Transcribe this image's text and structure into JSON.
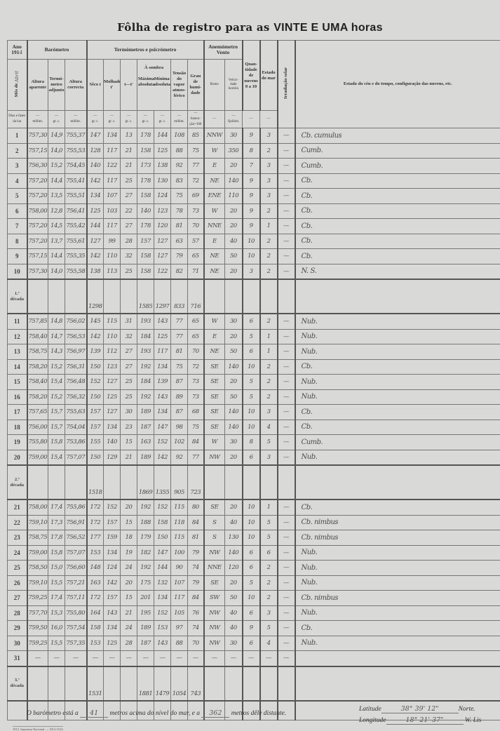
{
  "title": {
    "prefix": "Fôlha de registro para as",
    "hour": "VINTE E UMA horas"
  },
  "header": {
    "year_label": "Ano",
    "year_printed": "191",
    "year_hand": "4",
    "month_label": "Mês de",
    "month_hand": "Abril",
    "days_label": "Dias e fases da lua",
    "barometro": "Barómetro",
    "altura_aparente": "Altura aparente",
    "termometro_adjunto": "Termó-metro adjunto",
    "altura_correcta": "Altura correcta",
    "termometros": "Termómetros e psicrómetro",
    "seco": "Sêco t",
    "molhado": "Molhado t'",
    "diff": "t—t'",
    "sombra": "À sombra",
    "maxima": "Máxima absoluta",
    "minima": "Mínima absoluta",
    "tensao": "Tensão do vapor atmos-férico",
    "grau": "Grau de humi-dade",
    "anemometro": "Anemómetro",
    "vento": "Vento",
    "rumo": "Rumo",
    "velocidade": "Veloci-dade horária",
    "nuvens": "Quan-tidade de nuvens 0 a 10",
    "mar": "Estado do mar",
    "irradiacao": "Irradiação solar",
    "estado_ceu": "Estado do céu e do tempo, configuração das nuvens, etc.",
    "units": [
      "millim.",
      "gr. c.",
      "millim.",
      "gr. c.",
      "gr. c.",
      "gr. c.",
      "gr. c.",
      "gr. c.",
      "millim.",
      "Satura-ção=100",
      "",
      "Quilóm.",
      "",
      "",
      "",
      ""
    ]
  },
  "rows": [
    [
      "1",
      "757,30",
      "14,9",
      "755,37",
      "147",
      "134",
      "13",
      "178",
      "144",
      "108",
      "85",
      "NNW",
      "30",
      "9",
      "3",
      "—",
      "Cb. cumulus"
    ],
    [
      "2",
      "757,15",
      "14,0",
      "755,53",
      "128",
      "117",
      "21",
      "158",
      "125",
      "88",
      "75",
      "W",
      "350",
      "8",
      "2",
      "—",
      "Cumb."
    ],
    [
      "3",
      "756,30",
      "15,2",
      "754,45",
      "140",
      "122",
      "21",
      "173",
      "138",
      "92",
      "77",
      "E",
      "20",
      "7",
      "3",
      "—",
      "Cumb."
    ],
    [
      "4",
      "757,20",
      "14,4",
      "755,41",
      "142",
      "117",
      "25",
      "178",
      "130",
      "83",
      "72",
      "NE",
      "140",
      "9",
      "3",
      "—",
      "Cb."
    ],
    [
      "5",
      "757,20",
      "13,5",
      "755,51",
      "134",
      "107",
      "27",
      "158",
      "124",
      "75",
      "69",
      "ENE",
      "110",
      "9",
      "3",
      "—",
      "Cb."
    ],
    [
      "6",
      "758,00",
      "12,8",
      "756,41",
      "125",
      "103",
      "22",
      "140",
      "123",
      "78",
      "73",
      "W",
      "20",
      "9",
      "2",
      "—",
      "Cb."
    ],
    [
      "7",
      "757,20",
      "14,5",
      "755,42",
      "144",
      "117",
      "27",
      "178",
      "120",
      "81",
      "70",
      "NNE",
      "20",
      "9",
      "1",
      "—",
      "Cb."
    ],
    [
      "8",
      "757,20",
      "13,7",
      "755,61",
      "127",
      "99",
      "28",
      "157",
      "127",
      "63",
      "57",
      "E",
      "40",
      "10",
      "2",
      "—",
      "Cb."
    ],
    [
      "9",
      "757,15",
      "14,4",
      "755,35",
      "142",
      "110",
      "32",
      "158",
      "127",
      "79",
      "65",
      "NE",
      "50",
      "10",
      "2",
      "—",
      "Cb."
    ],
    [
      "10",
      "757,30",
      "14,0",
      "755,58",
      "138",
      "113",
      "25",
      "158",
      "122",
      "82",
      "71",
      "NE",
      "20",
      "3",
      "2",
      "—",
      "N. S."
    ]
  ],
  "decade1": {
    "label": "1.ª década",
    "seco": "1298",
    "maxima": "1585",
    "minima": "1297",
    "tensao": "833",
    "grau": "716"
  },
  "rows2": [
    [
      "11",
      "757,85",
      "14,8",
      "756,02",
      "145",
      "115",
      "31",
      "193",
      "143",
      "77",
      "65",
      "W",
      "30",
      "6",
      "2",
      "—",
      "Nub."
    ],
    [
      "12",
      "758,40",
      "14,7",
      "756,53",
      "142",
      "110",
      "32",
      "184",
      "125",
      "77",
      "65",
      "E",
      "20",
      "5",
      "1",
      "—",
      "Nub."
    ],
    [
      "13",
      "758,75",
      "14,3",
      "756,97",
      "139",
      "112",
      "27",
      "193",
      "117",
      "81",
      "70",
      "NE",
      "50",
      "6",
      "1",
      "—",
      "Nub."
    ],
    [
      "14",
      "758,20",
      "15,2",
      "756,31",
      "150",
      "123",
      "27",
      "192",
      "134",
      "75",
      "72",
      "SE",
      "140",
      "10",
      "2",
      "—",
      "Cb."
    ],
    [
      "15",
      "758,40",
      "15,4",
      "756,48",
      "152",
      "127",
      "25",
      "184",
      "139",
      "87",
      "73",
      "SE",
      "20",
      "5",
      "2",
      "—",
      "Nub."
    ],
    [
      "16",
      "758,20",
      "15,2",
      "756,32",
      "150",
      "125",
      "25",
      "192",
      "143",
      "89",
      "73",
      "SE",
      "50",
      "5",
      "2",
      "—",
      "Nub."
    ],
    [
      "17",
      "757,65",
      "15,7",
      "755,63",
      "157",
      "127",
      "30",
      "189",
      "134",
      "87",
      "68",
      "SE",
      "140",
      "10",
      "3",
      "—",
      "Cb."
    ],
    [
      "18",
      "756,00",
      "15,7",
      "754,04",
      "157",
      "134",
      "23",
      "187",
      "147",
      "98",
      "75",
      "SE",
      "140",
      "10",
      "4",
      "—",
      "Cb."
    ],
    [
      "19",
      "755,80",
      "15,8",
      "753,86",
      "155",
      "140",
      "15",
      "163",
      "152",
      "102",
      "84",
      "W",
      "30",
      "8",
      "5",
      "—",
      "Cumb."
    ],
    [
      "20",
      "759,00",
      "15,4",
      "757,07",
      "150",
      "129",
      "21",
      "189",
      "142",
      "92",
      "77",
      "NW",
      "20",
      "6",
      "3",
      "—",
      "Nub."
    ]
  ],
  "decade2": {
    "label": "2.ª década",
    "seco": "1518",
    "maxima": "1869",
    "minima": "1355",
    "tensao": "905",
    "grau": "723"
  },
  "rows3": [
    [
      "21",
      "758,00",
      "17,4",
      "755,86",
      "172",
      "152",
      "20",
      "192",
      "152",
      "115",
      "80",
      "SE",
      "20",
      "10",
      "1",
      "—",
      "Cb."
    ],
    [
      "22",
      "759,10",
      "17,3",
      "756,91",
      "172",
      "157",
      "15",
      "188",
      "158",
      "118",
      "84",
      "S",
      "40",
      "10",
      "5",
      "—",
      "Cb. nimbus"
    ],
    [
      "23",
      "758,75",
      "17,8",
      "756,52",
      "177",
      "159",
      "18",
      "179",
      "150",
      "115",
      "81",
      "S",
      "130",
      "10",
      "5",
      "—",
      "Cb. nimbus"
    ],
    [
      "24",
      "759,00",
      "15,8",
      "757,07",
      "153",
      "134",
      "19",
      "182",
      "147",
      "100",
      "79",
      "NW",
      "140",
      "6",
      "6",
      "—",
      "Nub."
    ],
    [
      "25",
      "758,50",
      "15,0",
      "756,60",
      "148",
      "124",
      "24",
      "192",
      "144",
      "90",
      "74",
      "NNE",
      "120",
      "6",
      "2",
      "—",
      "Nub."
    ],
    [
      "26",
      "759,10",
      "15,5",
      "757,21",
      "163",
      "142",
      "20",
      "175",
      "132",
      "107",
      "79",
      "SE",
      "20",
      "5",
      "2",
      "—",
      "Nub."
    ],
    [
      "27",
      "759,25",
      "17,4",
      "757,11",
      "172",
      "157",
      "15",
      "201",
      "134",
      "117",
      "84",
      "SW",
      "50",
      "10",
      "2",
      "—",
      "Cb. nimbus"
    ],
    [
      "28",
      "757,70",
      "15,3",
      "755,80",
      "164",
      "143",
      "21",
      "195",
      "152",
      "105",
      "76",
      "NW",
      "40",
      "6",
      "3",
      "—",
      "Nub."
    ],
    [
      "29",
      "759,50",
      "16,0",
      "757,54",
      "158",
      "134",
      "24",
      "189",
      "153",
      "97",
      "74",
      "NW",
      "40",
      "9",
      "5",
      "—",
      "Cb."
    ],
    [
      "30",
      "759,25",
      "15,5",
      "757,35",
      "153",
      "125",
      "28",
      "187",
      "143",
      "88",
      "70",
      "NW",
      "30",
      "6",
      "4",
      "—",
      "Nub."
    ],
    [
      "31",
      "—",
      "—",
      "—",
      "—",
      "—",
      "—",
      "—",
      "—",
      "—",
      "—",
      "—",
      "—",
      "—",
      "—",
      "—",
      ""
    ]
  ],
  "decade3": {
    "label": "3.ª década",
    "seco": "1531",
    "maxima": "1881",
    "minima": "1479",
    "tensao": "1054",
    "grau": "743"
  },
  "footer": {
    "baro_text1": "O barómetro está a",
    "baro_height": "41",
    "baro_text2": "metros acima do nível do mar, e a",
    "baro_distance": "362",
    "baro_text3": "metros dêle distante.",
    "lat_label": "Latitude",
    "lat_value": "38°  39'  12\"",
    "lat_dir": "Norte.",
    "lon_label": "Longitude",
    "lon_value": "18°  21'  37\"",
    "lon_dir": "W. Lis",
    "imprint": "1913. Imprensa Nacional — 1913-1914"
  }
}
